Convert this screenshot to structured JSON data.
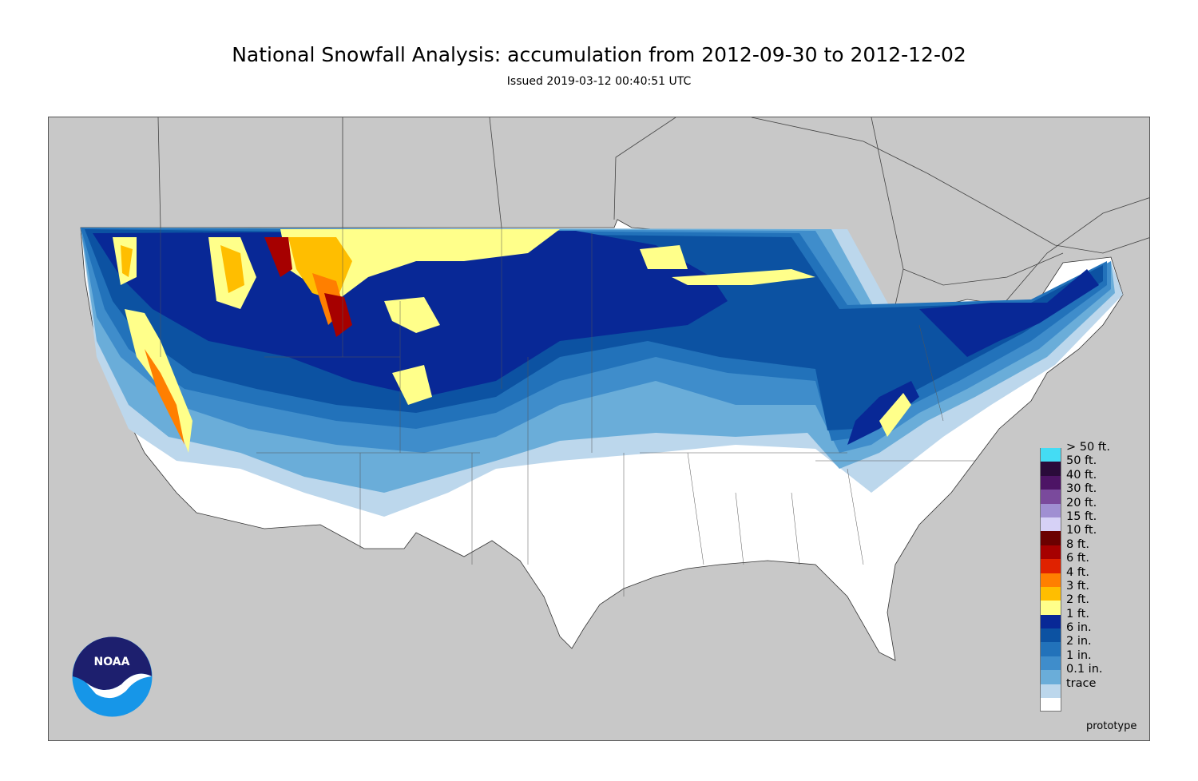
{
  "title": "National Snowfall Analysis: accumulation from 2012-09-30 to 2012-12-02",
  "subtitle": "Issued 2019-03-12 00:40:51 UTC",
  "prototype_label": "prototype",
  "logo": {
    "text": "NOAA",
    "icon": "noaa-logo"
  },
  "legend": [
    {
      "label": "> 50 ft.",
      "color": "#44dcf4"
    },
    {
      "label": "50 ft.",
      "color": "#2a0b3a"
    },
    {
      "label": "40 ft.",
      "color": "#4d1465"
    },
    {
      "label": "30 ft.",
      "color": "#7a4a9c"
    },
    {
      "label": "20 ft.",
      "color": "#a08fd2"
    },
    {
      "label": "15 ft.",
      "color": "#d6d1f6"
    },
    {
      "label": "10 ft.",
      "color": "#6b0000"
    },
    {
      "label": "8 ft.",
      "color": "#a60000"
    },
    {
      "label": "6 ft.",
      "color": "#e02200"
    },
    {
      "label": "4 ft.",
      "color": "#ff7f00"
    },
    {
      "label": "3 ft.",
      "color": "#ffbe00"
    },
    {
      "label": "2 ft.",
      "color": "#ffff8a"
    },
    {
      "label": "1 ft.",
      "color": "#082896"
    },
    {
      "label": "6 in.",
      "color": "#0c52a2"
    },
    {
      "label": "2 in.",
      "color": "#2272ba"
    },
    {
      "label": "1 in.",
      "color": "#3f8dcb"
    },
    {
      "label": "0.1 in.",
      "color": "#6aadd9"
    },
    {
      "label": "trace",
      "color": "#bcd7ec"
    }
  ],
  "colors": {
    "land_outside": "#c8c8c8",
    "water": "#c8c8c8",
    "conus_base": "#ffffff",
    "trace_last": "#ffffff"
  }
}
